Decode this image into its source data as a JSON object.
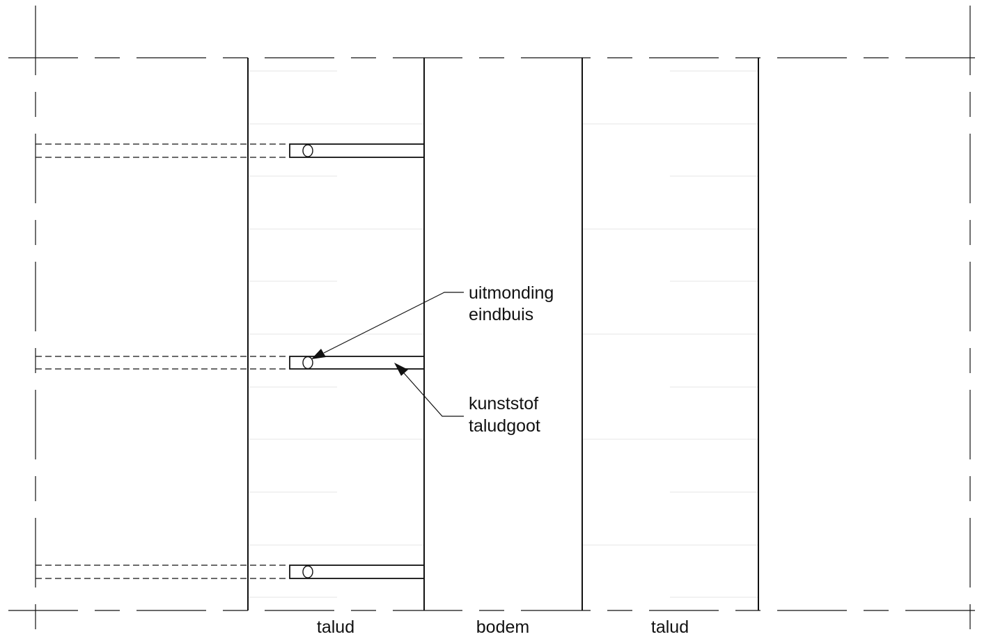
{
  "labels": {
    "zone_left": "talud",
    "zone_middle": "bodem",
    "zone_right": "talud",
    "annotation_outlet_line1": "uitmonding",
    "annotation_outlet_line2": "eindbuis",
    "annotation_gutter_line1": "kunststof",
    "annotation_gutter_line2": "taludgoot"
  },
  "colors": {
    "line": "#111111",
    "faint": "#e4e4e4"
  }
}
